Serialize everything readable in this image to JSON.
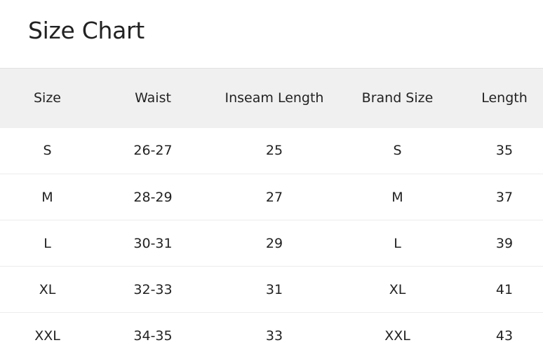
{
  "title": "Size Chart",
  "headers": [
    "Size",
    "Waist",
    "Inseam Length",
    "Brand Size",
    "Length"
  ],
  "rows": [
    [
      "S",
      "26-27",
      "25",
      "S",
      "35"
    ],
    [
      "M",
      "28-29",
      "27",
      "M",
      "37"
    ],
    [
      "L",
      "30-31",
      "29",
      "L",
      "39"
    ],
    [
      "XL",
      "32-33",
      "31",
      "XL",
      "41"
    ],
    [
      "XXL",
      "34-35",
      "33",
      "XXL",
      "43"
    ]
  ]
}
